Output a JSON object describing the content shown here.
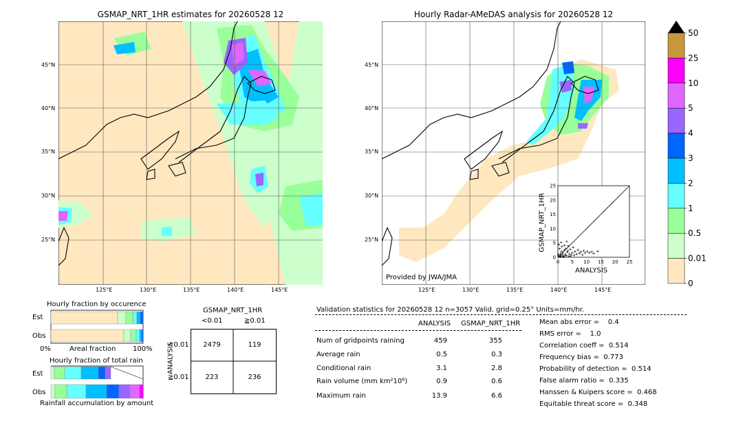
{
  "left_map": {
    "title": "GSMAP_NRT_1HR estimates for 20260528 12",
    "lat_labels": [
      "45°N",
      "40°N",
      "35°N",
      "30°N",
      "25°N"
    ],
    "lon_labels": [
      "125°E",
      "130°E",
      "135°E",
      "140°E",
      "145°E"
    ]
  },
  "right_map": {
    "title": "Hourly Radar-AMeDAS analysis for 20260528 12",
    "lat_labels": [
      "45°N",
      "40°N",
      "35°N",
      "30°N",
      "25°N"
    ],
    "lon_labels": [
      "125°E",
      "130°E",
      "135°E",
      "140°E",
      "145°E"
    ],
    "credit": "Provided by JWA/JMA"
  },
  "colorbar": {
    "levels": [
      "50",
      "25",
      "10",
      "5",
      "4",
      "3",
      "2",
      "1",
      "0.5",
      "0.01",
      "0"
    ],
    "colors": [
      "#c8963c",
      "#ff00ff",
      "#e066ff",
      "#9966ff",
      "#0066ff",
      "#00bfff",
      "#66ffff",
      "#99ff99",
      "#ccffcc",
      "#ffe8c0"
    ],
    "extend_color": "#000000"
  },
  "fraction_occurrence": {
    "title": "Hourly fraction by occurence",
    "row_labels": [
      "Est",
      "Obs"
    ],
    "axis_left": "0%",
    "axis_mid": "Areal fraction",
    "axis_right": "100%"
  },
  "fraction_total": {
    "title": "Hourly fraction of total rain",
    "row_labels": [
      "Est",
      "Obs"
    ],
    "footer": "Rainfall accumulation by amount"
  },
  "contingency": {
    "title": "GSMAP_NRT_1HR",
    "col_labels": [
      "<0.01",
      "≧0.01"
    ],
    "row_axis": "ANALYSIS",
    "row_labels": [
      "<0.01",
      "≧0.01"
    ],
    "cells": [
      "2479",
      "119",
      "223",
      "236"
    ]
  },
  "validation": {
    "header": "Validation statistics for 20260528 12  n=3057 Valid. grid=0.25° Units=mm/hr.",
    "col_analysis": "ANALYSIS",
    "col_gsmap": "GSMAP_NRT_1HR",
    "rows": [
      {
        "label": "Num of gridpoints raining",
        "analysis": "459",
        "gsmap": "355"
      },
      {
        "label": "Average rain",
        "analysis": "0.5",
        "gsmap": "0.3"
      },
      {
        "label": "Conditional rain",
        "analysis": "3.1",
        "gsmap": "2.8"
      },
      {
        "label": "Rain volume (mm km²10⁶)",
        "analysis": "0.9",
        "gsmap": "0.6"
      },
      {
        "label": "Maximum rain",
        "analysis": "13.9",
        "gsmap": "6.6"
      }
    ],
    "scores": [
      "Mean abs error =    0.4",
      "RMS error =    1.0",
      "Correlation coeff =  0.514",
      "Frequency bias =  0.773",
      "Probability of detection =  0.514",
      "False alarm ratio =  0.335",
      "Hanssen & Kuipers score =  0.468",
      "Equitable threat score =  0.348"
    ]
  },
  "chart_data": {
    "type": "scatter",
    "xlabel": "ANALYSIS",
    "ylabel": "GSMAP_NRT_1HR",
    "xlim": [
      0,
      25
    ],
    "ylim": [
      0,
      25
    ],
    "xticks": [
      "0",
      "5",
      "10",
      "15",
      "20",
      "25"
    ],
    "yticks": [
      "0",
      "5",
      "10",
      "15",
      "20",
      "25"
    ],
    "points": [
      [
        0.5,
        0.3
      ],
      [
        0.8,
        1.2
      ],
      [
        1.0,
        0.5
      ],
      [
        1.2,
        2.0
      ],
      [
        1.5,
        0.8
      ],
      [
        1.7,
        1.5
      ],
      [
        2.0,
        0.2
      ],
      [
        2.2,
        2.5
      ],
      [
        2.5,
        1.0
      ],
      [
        2.8,
        3.0
      ],
      [
        3.0,
        0.6
      ],
      [
        3.2,
        1.8
      ],
      [
        3.5,
        2.2
      ],
      [
        3.8,
        0.4
      ],
      [
        4.0,
        1.2
      ],
      [
        4.3,
        2.8
      ],
      [
        4.6,
        0.9
      ],
      [
        5.0,
        1.6
      ],
      [
        5.3,
        3.5
      ],
      [
        5.6,
        0.7
      ],
      [
        6.0,
        2.0
      ],
      [
        6.5,
        1.1
      ],
      [
        7.0,
        2.6
      ],
      [
        7.5,
        1.4
      ],
      [
        8.0,
        1.9
      ],
      [
        8.6,
        0.8
      ],
      [
        9.0,
        2.2
      ],
      [
        9.5,
        1.5
      ],
      [
        10.2,
        2.0
      ],
      [
        11.0,
        1.6
      ],
      [
        11.8,
        1.9
      ],
      [
        12.5,
        1.3
      ],
      [
        13.9,
        2.1
      ],
      [
        0.3,
        4.5
      ],
      [
        0.6,
        3.0
      ],
      [
        1.1,
        5.2
      ],
      [
        1.4,
        3.8
      ],
      [
        2.3,
        4.2
      ],
      [
        3.1,
        5.5
      ],
      [
        3.6,
        4.0
      ],
      [
        0.2,
        0.8
      ],
      [
        0.9,
        0.2
      ],
      [
        1.8,
        0.4
      ],
      [
        2.6,
        0.6
      ],
      [
        4.4,
        0.3
      ]
    ]
  }
}
